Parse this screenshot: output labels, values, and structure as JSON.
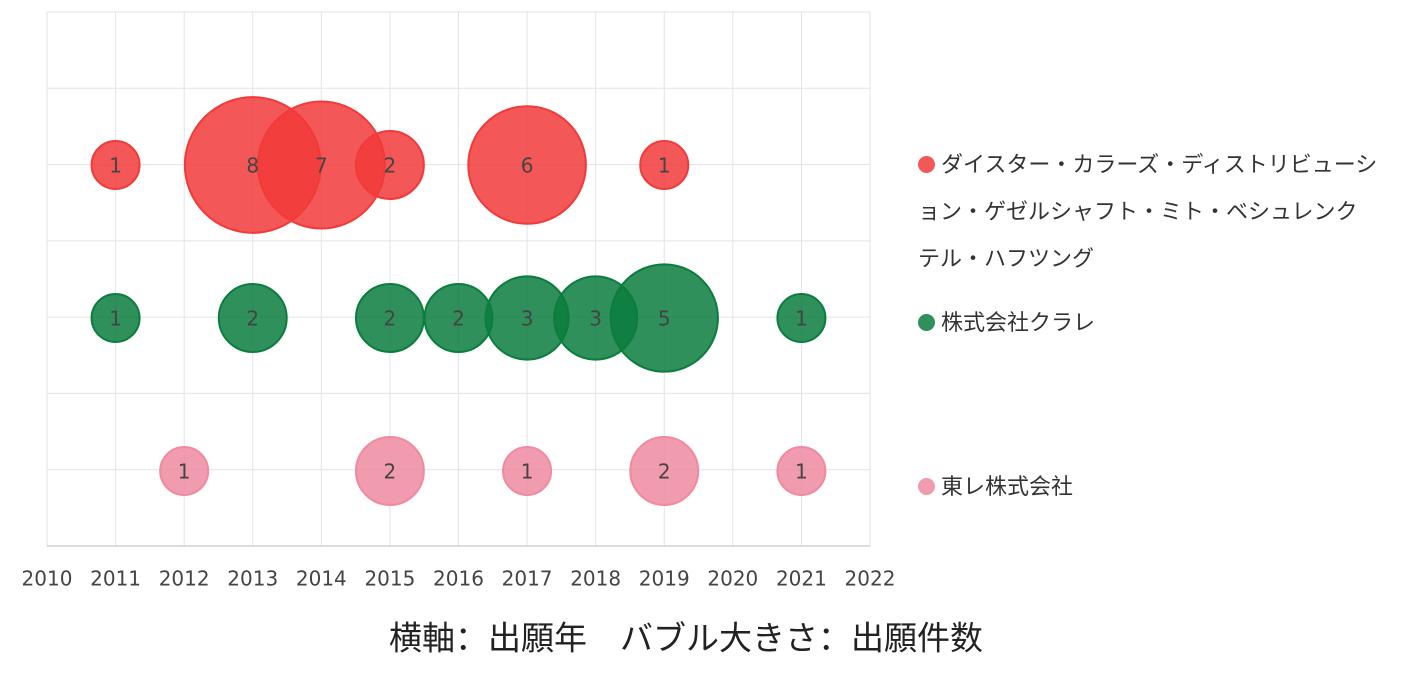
{
  "chart_data": {
    "type": "bubble",
    "caption": "横軸：出願年　バブル大きさ：出願件数",
    "xlim": [
      2010,
      2022
    ],
    "xticks": [
      2010,
      2011,
      2012,
      2013,
      2014,
      2015,
      2016,
      2017,
      2018,
      2019,
      2020,
      2021,
      2022
    ],
    "grid": true,
    "legend": "right",
    "series": [
      {
        "name": "ダイスター・カラーズ・ディストリビューション・ゲゼルシャフト・ミト・ベシュレンクテル・ハフツング",
        "color": "#f23a3a",
        "x": [
          2011,
          2013,
          2014,
          2015,
          2017,
          2019
        ],
        "values": [
          1,
          8,
          7,
          2,
          6,
          1
        ]
      },
      {
        "name": "株式会社クラレ",
        "color": "#0b7d3e",
        "x": [
          2011,
          2013,
          2015,
          2016,
          2017,
          2018,
          2019,
          2021
        ],
        "values": [
          1,
          2,
          2,
          2,
          3,
          3,
          5,
          1
        ]
      },
      {
        "name": "東レ株式会社",
        "color": "#ef8aa0",
        "x": [
          2012,
          2015,
          2017,
          2019,
          2021
        ],
        "values": [
          1,
          2,
          1,
          2,
          1
        ]
      }
    ]
  }
}
